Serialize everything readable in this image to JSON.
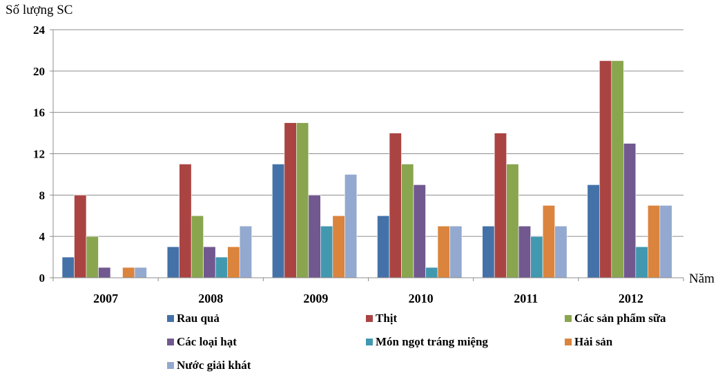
{
  "chart_data": {
    "type": "bar",
    "ylabel": "Số lượng SC",
    "xlabel": "Năm",
    "ylim": [
      0,
      24
    ],
    "yticks": [
      0,
      4,
      8,
      12,
      16,
      20,
      24
    ],
    "grid": true,
    "legend_position": "bottom",
    "categories": [
      "2007",
      "2008",
      "2009",
      "2010",
      "2011",
      "2012"
    ],
    "series": [
      {
        "name": "Rau quả",
        "color": "#4472a8",
        "values": [
          2,
          3,
          11,
          6,
          5,
          9
        ]
      },
      {
        "name": "Thịt",
        "color": "#aa4442",
        "values": [
          8,
          11,
          15,
          14,
          14,
          21
        ]
      },
      {
        "name": "Các sản phẩm sữa",
        "color": "#89a54e",
        "values": [
          4,
          6,
          15,
          11,
          11,
          21
        ]
      },
      {
        "name": "Các loại hạt",
        "color": "#71588f",
        "values": [
          1,
          3,
          8,
          9,
          5,
          13
        ]
      },
      {
        "name": "Món ngọt tráng miệng",
        "color": "#4198af",
        "values": [
          0,
          2,
          5,
          1,
          4,
          3
        ]
      },
      {
        "name": "Hải sản",
        "color": "#db843d",
        "values": [
          1,
          3,
          6,
          5,
          7,
          7
        ]
      },
      {
        "name": "Nước giải khát",
        "color": "#93a9cf",
        "values": [
          1,
          5,
          10,
          5,
          5,
          7
        ]
      }
    ]
  }
}
